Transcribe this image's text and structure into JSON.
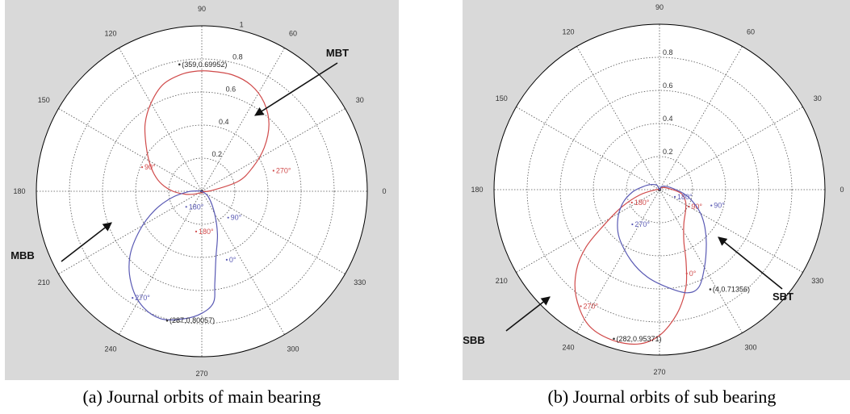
{
  "chart_data": [
    {
      "type": "polar",
      "panel": "a",
      "caption": "(a)  Journal orbits of main bearing",
      "angle_labels": [
        "0",
        "30",
        "60",
        "90",
        "120",
        "150",
        "180",
        "210",
        "240",
        "270",
        "300",
        "330"
      ],
      "radial_ticks": [
        "0.2",
        "0.4",
        "0.6",
        "0.8",
        "1"
      ],
      "rlim": [
        0,
        1
      ],
      "grid": true,
      "series": [
        {
          "color": "#d04a4a",
          "points": [
            [
              0,
              0
            ],
            [
              3,
              0.05
            ],
            [
              15,
              0.22
            ],
            [
              25,
              0.33
            ],
            [
              35,
              0.45
            ],
            [
              45,
              0.56
            ],
            [
              55,
              0.64
            ],
            [
              65,
              0.69
            ],
            [
              75,
              0.71
            ],
            [
              85,
              0.71
            ],
            [
              92,
              0.71
            ],
            [
              100,
              0.7
            ],
            [
              110,
              0.67
            ],
            [
              120,
              0.6
            ],
            [
              130,
              0.52
            ],
            [
              140,
              0.43
            ],
            [
              150,
              0.36
            ],
            [
              160,
              0.3
            ],
            [
              170,
              0.24
            ],
            [
              180,
              0.17
            ],
            [
              190,
              0.1
            ],
            [
              200,
              0.05
            ],
            [
              215,
              0.02
            ],
            [
              240,
              0.01
            ],
            [
              270,
              0.01
            ],
            [
              300,
              0.01
            ],
            [
              330,
              0.01
            ],
            [
              355,
              0.0
            ]
          ],
          "point_labels": [
            {
              "text": "270°",
              "r": 0.44,
              "theta": 16,
              "color": "#d04a4a"
            },
            {
              "text": "90°",
              "r": 0.38,
              "theta": 158,
              "color": "#d04a4a"
            },
            {
              "text": "180°",
              "r": 0.24,
              "theta": 262,
              "color": "#d04a4a"
            }
          ]
        },
        {
          "color": "#5a5ab4",
          "points": [
            [
              0,
              0
            ],
            [
              320,
              0.05
            ],
            [
              300,
              0.15
            ],
            [
              290,
              0.27
            ],
            [
              282,
              0.4
            ],
            [
              278,
              0.55
            ],
            [
              276,
              0.66
            ],
            [
              270,
              0.72
            ],
            [
              262,
              0.76
            ],
            [
              252,
              0.79
            ],
            [
              242,
              0.76
            ],
            [
              232,
              0.68
            ],
            [
              222,
              0.57
            ],
            [
              212,
              0.43
            ],
            [
              202,
              0.3
            ],
            [
              192,
              0.18
            ],
            [
              182,
              0.08
            ],
            [
              175,
              0.02
            ],
            [
              90,
              0.0
            ]
          ],
          "point_labels": [
            {
              "text": "90°",
              "r": 0.22,
              "theta": 315,
              "color": "#5a5ab4"
            },
            {
              "text": "180°",
              "r": 0.13,
              "theta": 225,
              "color": "#5a5ab4"
            },
            {
              "text": "0°",
              "r": 0.43,
              "theta": 290,
              "color": "#5a5ab4"
            },
            {
              "text": "270°",
              "r": 0.75,
              "theta": 237,
              "color": "#5a5ab4"
            }
          ]
        }
      ],
      "annotations": [
        {
          "text": "(359,0.69952)",
          "r": 0.76,
          "theta": 100
        },
        {
          "text": "(287,0.80057)",
          "r": 0.79,
          "theta": 255
        }
      ],
      "callouts": [
        {
          "text": "MBT"
        },
        {
          "text": "MBB"
        }
      ]
    },
    {
      "type": "polar",
      "panel": "b",
      "caption": "(b) Journal orbits of sub bearing",
      "angle_labels": [
        "0",
        "30",
        "60",
        "90",
        "120",
        "150",
        "180",
        "210",
        "240",
        "270",
        "300",
        "330"
      ],
      "radial_ticks": [
        "0.2",
        "0.4",
        "0.6",
        "0.8"
      ],
      "rlim": [
        0,
        1
      ],
      "grid": true,
      "series": [
        {
          "color": "#d04a4a",
          "points": [
            [
              0,
              0
            ],
            [
              180,
              0.02
            ],
            [
              195,
              0.12
            ],
            [
              205,
              0.25
            ],
            [
              213,
              0.4
            ],
            [
              218,
              0.55
            ],
            [
              224,
              0.68
            ],
            [
              232,
              0.8
            ],
            [
              242,
              0.9
            ],
            [
              252,
              0.93
            ],
            [
              262,
              0.92
            ],
            [
              270,
              0.86
            ],
            [
              278,
              0.74
            ],
            [
              285,
              0.6
            ],
            [
              290,
              0.46
            ],
            [
              295,
              0.34
            ],
            [
              305,
              0.25
            ],
            [
              320,
              0.2
            ],
            [
              335,
              0.17
            ],
            [
              350,
              0.13
            ],
            [
              5,
              0.06
            ],
            [
              40,
              0.02
            ]
          ],
          "point_labels": [
            {
              "text": "180°",
              "r": 0.18,
              "theta": 205,
              "color": "#d04a4a"
            },
            {
              "text": "90°",
              "r": 0.2,
              "theta": 330,
              "color": "#d04a4a"
            },
            {
              "text": "0°",
              "r": 0.52,
              "theta": 288,
              "color": "#d04a4a"
            },
            {
              "text": "270°",
              "r": 0.83,
              "theta": 236,
              "color": "#d04a4a"
            }
          ]
        },
        {
          "color": "#5a5ab4",
          "points": [
            [
              0,
              0
            ],
            [
              120,
              0.03
            ],
            [
              150,
              0.06
            ],
            [
              170,
              0.1
            ],
            [
              185,
              0.16
            ],
            [
              200,
              0.23
            ],
            [
              215,
              0.3
            ],
            [
              230,
              0.37
            ],
            [
              248,
              0.45
            ],
            [
              262,
              0.52
            ],
            [
              275,
              0.58
            ],
            [
              285,
              0.63
            ],
            [
              292,
              0.62
            ],
            [
              300,
              0.53
            ],
            [
              310,
              0.43
            ],
            [
              320,
              0.35
            ],
            [
              330,
              0.28
            ],
            [
              340,
              0.21
            ],
            [
              350,
              0.15
            ],
            [
              5,
              0.08
            ],
            [
              30,
              0.04
            ],
            [
              60,
              0.02
            ]
          ],
          "point_labels": [
            {
              "text": "180°",
              "r": 0.1,
              "theta": 335,
              "color": "#5a5ab4"
            },
            {
              "text": "90°",
              "r": 0.32,
              "theta": 343,
              "color": "#5a5ab4"
            },
            {
              "text": "270°",
              "r": 0.26,
              "theta": 232,
              "color": "#5a5ab4"
            }
          ]
        }
      ],
      "annotations": [
        {
          "text": "(282,0.95371)",
          "r": 0.92,
          "theta": 253
        },
        {
          "text": "(4,0.71356)",
          "r": 0.66,
          "theta": 297
        }
      ],
      "callouts": [
        {
          "text": "SBT"
        },
        {
          "text": "SBB"
        }
      ]
    }
  ]
}
